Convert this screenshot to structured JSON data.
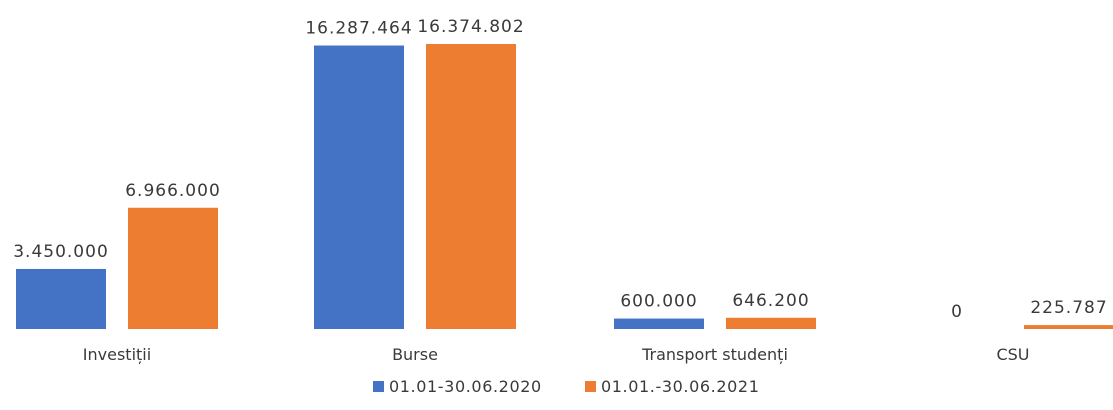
{
  "chart_data": {
    "type": "bar",
    "categories": [
      "Investiții",
      "Burse",
      "Transport studenți",
      "CSU"
    ],
    "series": [
      {
        "name": "01.01-30.06.2020",
        "color": "#4472C4",
        "values": [
          3450000,
          16287464,
          600000,
          0
        ],
        "labels": [
          "3.450.000",
          "16.287.464",
          "600.000",
          "0"
        ]
      },
      {
        "name": "01.01.-30.06.2021",
        "color": "#ED7D31",
        "values": [
          6966000,
          16374802,
          646200,
          225787
        ],
        "labels": [
          "6.966.000",
          "16.374.802",
          "646.200",
          "225.787"
        ]
      }
    ],
    "grid": false,
    "legend_position": "bottom"
  }
}
